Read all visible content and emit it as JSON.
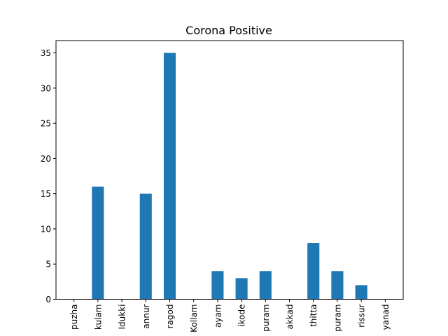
{
  "chart_data": {
    "type": "bar",
    "title": "Corona Positive",
    "xlabel": "",
    "ylabel": "",
    "categories": [
      "puzha",
      "kulam",
      "Idukki",
      "annur",
      "ragod",
      "Kollam",
      "ayam",
      "ikode",
      "puram",
      "akkad",
      "thitta",
      "puram",
      "rissur",
      "yanad"
    ],
    "values": [
      0,
      16,
      0,
      15,
      35,
      0,
      4,
      3,
      4,
      0,
      8,
      4,
      2,
      0
    ],
    "ylim": [
      0,
      36.75
    ],
    "yticks": [
      0,
      5,
      10,
      15,
      20,
      25,
      30,
      35
    ],
    "grid": false,
    "legend": "none",
    "bar_color": "#1f77b4",
    "x_tick_rotation": "vertical"
  }
}
